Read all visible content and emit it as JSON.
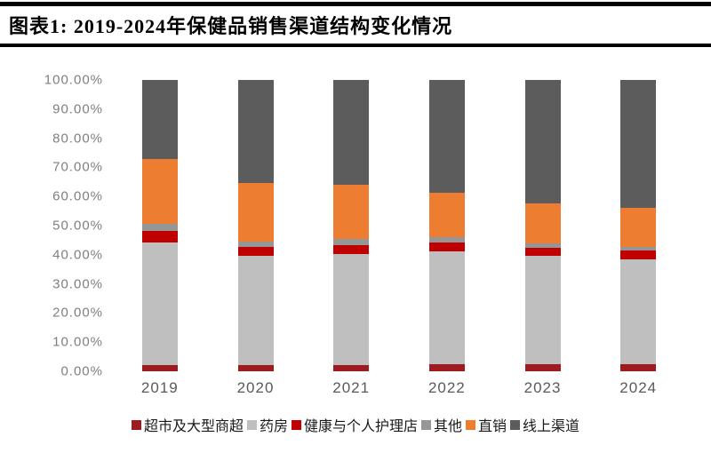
{
  "header": {
    "title": "图表1:  2019-2024年保健品销售渠道结构变化情况"
  },
  "chart_data": {
    "type": "bar",
    "stacked": true,
    "title": "2019-2024年保健品销售渠道结构变化情况",
    "categories": [
      "2019",
      "2020",
      "2021",
      "2022",
      "2023",
      "2024"
    ],
    "series": [
      {
        "name": "超市及大型商超",
        "color": "#9E1B1F",
        "values": [
          2.0,
          2.0,
          2.2,
          2.3,
          2.3,
          2.3
        ]
      },
      {
        "name": "药房",
        "color": "#BFBFBF",
        "values": [
          42.1,
          37.7,
          38.1,
          38.8,
          37.4,
          36.2
        ]
      },
      {
        "name": "健康与个人护理店",
        "color": "#C00000",
        "values": [
          4.1,
          2.9,
          3.1,
          3.0,
          2.6,
          2.9
        ]
      },
      {
        "name": "其他",
        "color": "#969696",
        "values": [
          2.3,
          2.0,
          2.0,
          2.0,
          1.5,
          1.2
        ]
      },
      {
        "name": "直销",
        "color": "#ED7D31",
        "values": [
          22.5,
          20.0,
          18.5,
          15.3,
          13.7,
          13.5
        ]
      },
      {
        "name": "线上渠道",
        "color": "#5C5C5C",
        "values": [
          27.0,
          35.4,
          36.1,
          38.6,
          42.5,
          43.9
        ]
      }
    ],
    "xlabel": "",
    "ylabel": "",
    "ylim": [
      0,
      100
    ],
    "y_tick_step": 10,
    "y_tick_labels": [
      "0.00%",
      "10.00%",
      "20.00%",
      "30.00%",
      "40.00%",
      "50.00%",
      "60.00%",
      "70.00%",
      "80.00%",
      "90.00%",
      "100.00%"
    ],
    "grid": false,
    "legend_position": "bottom"
  }
}
